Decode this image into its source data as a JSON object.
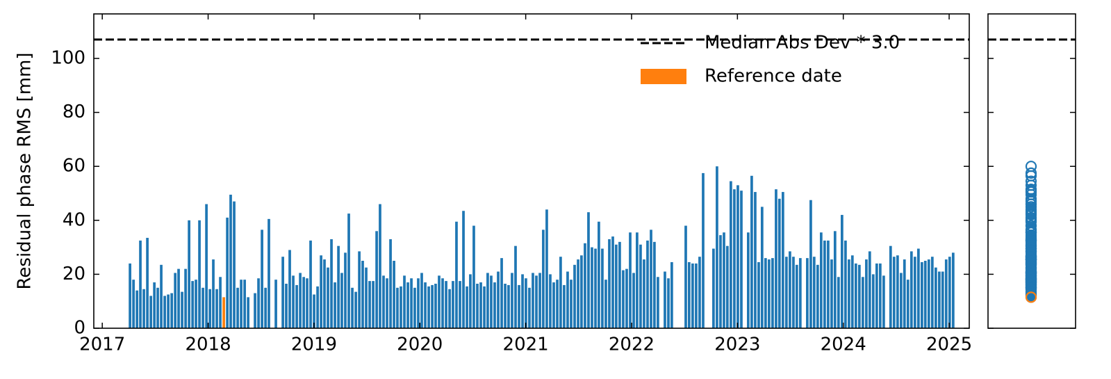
{
  "chart_data": {
    "type": "bar",
    "y_label": "Residual phase RMS [mm]",
    "xlim": [
      2016.92,
      2025.19
    ],
    "xticks": [
      2017,
      2018,
      2019,
      2020,
      2021,
      2022,
      2023,
      2024,
      2025
    ],
    "ylim": [
      0,
      116.5
    ],
    "yticks": [
      0,
      20,
      40,
      60,
      80,
      100
    ],
    "legend": "upper right",
    "side_panel": "scatter",
    "hlines": [
      {
        "name": "Median Abs Dev * 3.0",
        "value": 107,
        "color": "#000000"
      }
    ],
    "series": [
      {
        "color": "#1f77b4",
        "x": [
          2017.262,
          2017.295,
          2017.328,
          2017.36,
          2017.393,
          2017.426,
          2017.459,
          2017.492,
          2017.524,
          2017.557,
          2017.59,
          2017.623,
          2017.656,
          2017.689,
          2017.721,
          2017.754,
          2017.787,
          2017.82,
          2017.853,
          2017.885,
          2017.918,
          2017.951,
          2017.984,
          2018.017,
          2018.049,
          2018.082,
          2018.115,
          2018.181,
          2018.213,
          2018.246,
          2018.279,
          2018.312,
          2018.345,
          2018.378,
          2018.443,
          2018.476,
          2018.509,
          2018.542,
          2018.574,
          2018.64,
          2018.706,
          2018.738,
          2018.771,
          2018.804,
          2018.837,
          2018.87,
          2018.903,
          2018.935,
          2018.968,
          2019.001,
          2019.034,
          2019.067,
          2019.099,
          2019.132,
          2019.165,
          2019.198,
          2019.231,
          2019.263,
          2019.296,
          2019.329,
          2019.362,
          2019.395,
          2019.428,
          2019.46,
          2019.493,
          2019.526,
          2019.559,
          2019.592,
          2019.624,
          2019.657,
          2019.69,
          2019.723,
          2019.756,
          2019.788,
          2019.821,
          2019.854,
          2019.887,
          2019.92,
          2019.952,
          2019.985,
          2020.018,
          2020.051,
          2020.084,
          2020.117,
          2020.149,
          2020.182,
          2020.215,
          2020.248,
          2020.281,
          2020.313,
          2020.346,
          2020.379,
          2020.412,
          2020.445,
          2020.477,
          2020.51,
          2020.543,
          2020.576,
          2020.609,
          2020.641,
          2020.674,
          2020.707,
          2020.74,
          2020.773,
          2020.806,
          2020.838,
          2020.871,
          2020.904,
          2020.937,
          2020.97,
          2021.002,
          2021.035,
          2021.068,
          2021.101,
          2021.134,
          2021.166,
          2021.199,
          2021.232,
          2021.265,
          2021.298,
          2021.33,
          2021.363,
          2021.396,
          2021.429,
          2021.462,
          2021.495,
          2021.527,
          2021.56,
          2021.593,
          2021.626,
          2021.659,
          2021.691,
          2021.724,
          2021.757,
          2021.79,
          2021.823,
          2021.855,
          2021.888,
          2021.921,
          2021.954,
          2021.987,
          2022.02,
          2022.052,
          2022.085,
          2022.118,
          2022.151,
          2022.184,
          2022.216,
          2022.249,
          2022.315,
          2022.348,
          2022.38,
          2022.512,
          2022.544,
          2022.577,
          2022.61,
          2022.643,
          2022.676,
          2022.774,
          2022.807,
          2022.84,
          2022.873,
          2022.905,
          2022.938,
          2022.971,
          2023.004,
          2023.037,
          2023.102,
          2023.135,
          2023.168,
          2023.201,
          2023.233,
          2023.266,
          2023.299,
          2023.332,
          2023.365,
          2023.397,
          2023.43,
          2023.463,
          2023.496,
          2023.529,
          2023.561,
          2023.594,
          2023.66,
          2023.693,
          2023.725,
          2023.758,
          2023.791,
          2023.824,
          2023.857,
          2023.89,
          2023.922,
          2023.955,
          2023.988,
          2024.021,
          2024.054,
          2024.086,
          2024.119,
          2024.152,
          2024.185,
          2024.218,
          2024.25,
          2024.283,
          2024.316,
          2024.349,
          2024.382,
          2024.447,
          2024.48,
          2024.513,
          2024.546,
          2024.578,
          2024.611,
          2024.644,
          2024.677,
          2024.71,
          2024.743,
          2024.775,
          2024.808,
          2024.841,
          2024.874,
          2024.907,
          2024.939,
          2024.972,
          2025.005,
          2025.038
        ],
        "values": [
          24,
          18,
          14,
          32.5,
          14.5,
          33.5,
          12,
          17,
          15,
          23.5,
          12,
          12.5,
          13,
          20.5,
          22,
          13.5,
          22,
          40,
          17.5,
          18,
          40,
          15,
          46,
          14.5,
          25.5,
          14.5,
          19,
          41,
          49.5,
          47,
          15,
          18,
          18,
          11.5,
          13,
          18.5,
          36.5,
          15,
          40.5,
          18,
          26.5,
          16.5,
          29,
          19.5,
          16,
          20.5,
          19,
          18.5,
          32.5,
          12.5,
          15.5,
          27,
          25.5,
          22.5,
          33,
          17,
          30.5,
          20.5,
          28,
          42.5,
          15,
          13.5,
          28.5,
          25,
          22.5,
          17.5,
          17.5,
          36,
          46,
          19.5,
          18.5,
          33,
          25,
          15,
          15.5,
          19.5,
          17,
          18.5,
          15,
          18.5,
          20.5,
          17,
          15.5,
          16,
          16.5,
          19.5,
          18.5,
          17.5,
          14.5,
          17.5,
          39.5,
          17.5,
          43.5,
          15.5,
          20,
          38,
          16.5,
          17,
          15.5,
          20.5,
          19.5,
          17,
          21,
          26,
          16.5,
          16,
          20.5,
          30.5,
          16,
          20,
          18.5,
          15,
          20.5,
          19.5,
          20.5,
          36.5,
          44,
          20,
          17,
          18,
          26.5,
          16,
          21,
          18,
          23.5,
          25.5,
          27,
          31.5,
          43,
          30,
          29.5,
          39.5,
          29.5,
          18,
          33,
          34,
          31,
          32,
          21.5,
          22,
          35.5,
          20.5,
          35.5,
          31,
          25.5,
          32.5,
          36.5,
          32,
          19,
          21,
          18.5,
          24.5,
          38,
          24.5,
          24,
          24,
          26.5,
          57.5,
          29.5,
          60,
          34.5,
          35.5,
          30.5,
          54.5,
          51.5,
          53,
          51,
          35.5,
          56.5,
          50.5,
          24.5,
          45,
          26,
          25.5,
          26,
          51.5,
          48,
          50.5,
          26.5,
          28.5,
          26.5,
          23.5,
          26,
          26,
          47.5,
          26.5,
          23.5,
          35.5,
          32.5,
          32.5,
          25.5,
          36,
          19,
          42,
          32.5,
          25.5,
          27,
          24,
          23.5,
          19,
          25.5,
          28.5,
          20,
          24,
          24,
          19.5,
          30.5,
          26.5,
          27,
          20.5,
          25.5,
          18,
          28.5,
          26.5,
          29.5,
          24.5,
          25,
          25.5,
          26.5,
          22.5,
          21,
          21,
          25.5,
          26.5,
          28
        ]
      },
      {
        "name": "Reference date",
        "color": "#ff7f0e",
        "x": [
          2018.148
        ],
        "values": [
          11.5
        ]
      }
    ]
  }
}
